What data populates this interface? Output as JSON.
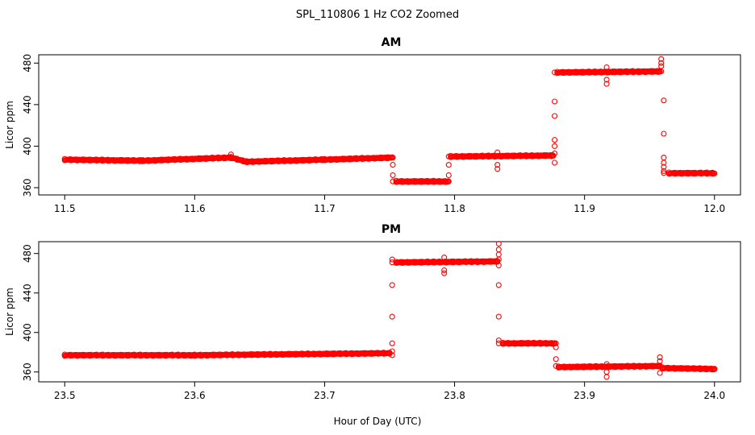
{
  "figure_title": "SPL_110806  1 Hz CO2 Zoomed",
  "xlabel": "Hour of Day (UTC)",
  "colors": {
    "points": "#ff0000",
    "axes": "#000000",
    "background": "#ffffff"
  },
  "chart_data": [
    {
      "type": "scatter",
      "title": "AM",
      "ylabel": "Licor ppm",
      "xlim": [
        11.48,
        12.02
      ],
      "ylim": [
        353,
        488
      ],
      "xticks": [
        "11.5",
        "11.6",
        "11.7",
        "11.8",
        "11.9",
        "12.0"
      ],
      "yticks": [
        "360",
        "400",
        "440",
        "480"
      ],
      "series": [
        {
          "marker": "open-circle",
          "segments": [
            {
              "x": [
                11.5,
                11.56
              ],
              "y": [
                387,
                386
              ]
            },
            {
              "x": [
                11.56,
                11.628
              ],
              "y": [
                386,
                389
              ]
            },
            {
              "x": [
                11.628,
                11.64
              ],
              "y": [
                389,
                385
              ]
            },
            {
              "x": [
                11.64,
                11.7
              ],
              "y": [
                385,
                387
              ]
            },
            {
              "x": [
                11.7,
                11.752
              ],
              "y": [
                387,
                389
              ]
            },
            {
              "x": [
                11.755,
                11.795
              ],
              "y": [
                366,
                366
              ]
            },
            {
              "x": [
                11.797,
                11.876
              ],
              "y": [
                390,
                391
              ]
            },
            {
              "x": [
                11.879,
                11.958
              ],
              "y": [
                471,
                472
              ]
            },
            {
              "x": [
                11.965,
                12.0
              ],
              "y": [
                374,
                374
              ]
            }
          ],
          "spikes": [
            {
              "x": 11.7525,
              "y": [
                389,
                382,
                372,
                366
              ]
            },
            {
              "x": 11.7955,
              "y": [
                366,
                372,
                382,
                390
              ]
            },
            {
              "x": 11.628,
              "y": [
                392
              ]
            },
            {
              "x": 11.833,
              "y": [
                378,
                382,
                394
              ]
            },
            {
              "x": 11.877,
              "y": [
                384,
                393,
                400,
                406,
                429,
                443,
                471
              ]
            },
            {
              "x": 11.917,
              "y": [
                460,
                464,
                476
              ]
            },
            {
              "x": 11.959,
              "y": [
                484,
                480,
                477,
                472
              ]
            },
            {
              "x": 11.961,
              "y": [
                444,
                412,
                389,
                384,
                380,
                376,
                374
              ]
            }
          ]
        }
      ]
    },
    {
      "type": "scatter",
      "title": "PM",
      "ylabel": "Licor ppm",
      "xlim": [
        23.48,
        24.02
      ],
      "ylim": [
        350,
        492
      ],
      "xticks": [
        "23.5",
        "23.6",
        "23.7",
        "23.8",
        "23.9",
        "24.0"
      ],
      "yticks": [
        "360",
        "400",
        "440",
        "480"
      ],
      "series": [
        {
          "marker": "open-circle",
          "segments": [
            {
              "x": [
                23.5,
                23.6
              ],
              "y": [
                377,
                377
              ]
            },
            {
              "x": [
                23.6,
                23.75
              ],
              "y": [
                377,
                379
              ]
            },
            {
              "x": [
                23.755,
                23.833
              ],
              "y": [
                471,
                472
              ]
            },
            {
              "x": [
                23.837,
                23.877
              ],
              "y": [
                389,
                389
              ]
            },
            {
              "x": [
                23.88,
                23.958
              ],
              "y": [
                365,
                366
              ]
            },
            {
              "x": [
                23.96,
                24.0
              ],
              "y": [
                364,
                363
              ]
            }
          ],
          "spikes": [
            {
              "x": 23.752,
              "y": [
                377,
                381,
                389,
                416,
                448,
                471,
                474
              ]
            },
            {
              "x": 23.792,
              "y": [
                460,
                463,
                476
              ]
            },
            {
              "x": 23.834,
              "y": [
                490,
                484,
                479,
                474,
                468,
                448,
                416,
                392,
                389
              ]
            },
            {
              "x": 23.878,
              "y": [
                389,
                385,
                373,
                366
              ]
            },
            {
              "x": 23.917,
              "y": [
                355,
                360,
                368
              ]
            },
            {
              "x": 23.958,
              "y": [
                359,
                366,
                371,
                375
              ]
            }
          ]
        }
      ]
    }
  ]
}
